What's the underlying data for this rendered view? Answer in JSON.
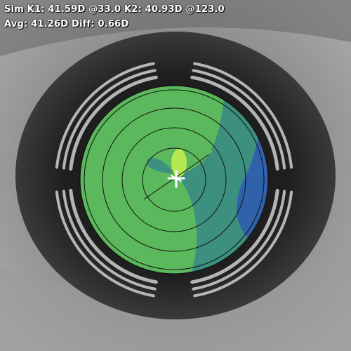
{
  "keratometry": {
    "sim_k1_label": "Sim K1:",
    "sim_k1_value": "41.59D",
    "k1_axis": "@33.0",
    "k2_label": "K2:",
    "k2_value": "40.93D",
    "k2_axis": "@123.0",
    "avg_label": "Avg:",
    "avg_value": "41.26D",
    "diff_label": "Diff:",
    "diff_value": "0.66D"
  },
  "colors": {
    "map_green": "#5cb85c",
    "map_teal": "#3d8f80",
    "map_blue": "#2f62ab",
    "map_yellow_green": "#b6e851",
    "ring_line": "#111111",
    "placido_ring": "#cfcfcf",
    "iris_dark": "#1e1e1e"
  }
}
